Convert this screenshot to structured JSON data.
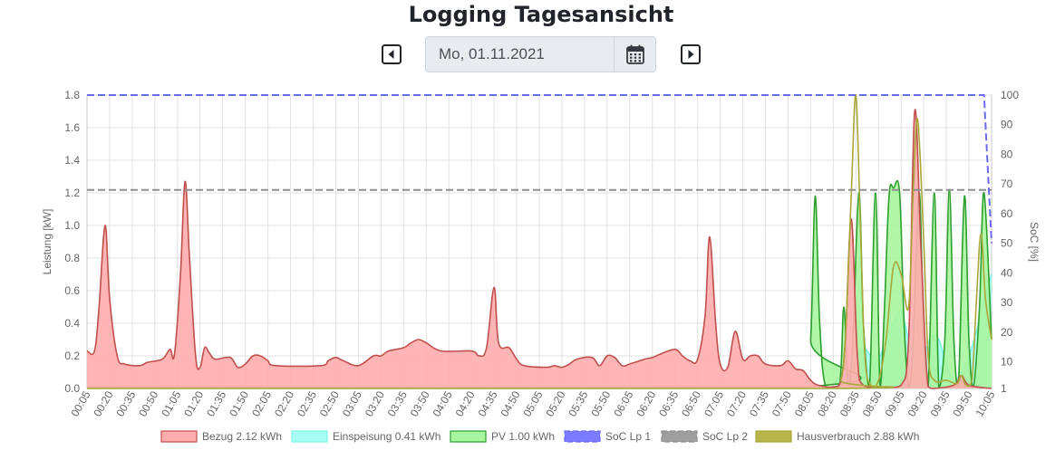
{
  "page": {
    "title": "Logging Tagesansicht"
  },
  "date_picker": {
    "value": "Mo, 01.11.2021"
  },
  "icons": {
    "prev": "caret-left-square-icon",
    "next": "caret-right-square-icon",
    "calendar": "calendar-icon"
  },
  "chart_data": {
    "type": "area",
    "ylabel": "Leistung [kW]",
    "y2label": "SoC [%]",
    "ylim": [
      0,
      1.8
    ],
    "y2lim": [
      1,
      100
    ],
    "yticks": [
      "0.0",
      "0.2",
      "0.4",
      "0.6",
      "0.8",
      "1.0",
      "1.2",
      "1.4",
      "1.6",
      "1.8"
    ],
    "y2ticks": [
      "1",
      "10",
      "20",
      "30",
      "40",
      "50",
      "60",
      "70",
      "80",
      "90",
      "100"
    ],
    "xticks": [
      "00:05",
      "00:20",
      "00:35",
      "00:50",
      "01:05",
      "01:20",
      "01:35",
      "01:50",
      "02:05",
      "02:20",
      "02:35",
      "02:50",
      "03:05",
      "03:20",
      "03:35",
      "03:50",
      "04:05",
      "04:20",
      "04:35",
      "04:50",
      "05:05",
      "05:20",
      "05:35",
      "05:50",
      "06:05",
      "06:20",
      "06:35",
      "06:50",
      "07:05",
      "07:20",
      "07:35",
      "07:50",
      "08:05",
      "08:20",
      "08:35",
      "08:50",
      "09:05",
      "09:20",
      "09:35",
      "09:50",
      "10:05"
    ],
    "x_start": "00:05",
    "x_end": "10:05",
    "grid": true,
    "legend_position": "bottom",
    "series": [
      {
        "name": "Bezug 2.12 kWh",
        "color": "#c0504d",
        "fill": "#ffadad",
        "axis": "left",
        "points": [
          [
            "00:05",
            0.23
          ],
          [
            "00:10",
            0.23
          ],
          [
            "00:13",
            0.5
          ],
          [
            "00:17",
            1.0
          ],
          [
            "00:20",
            0.55
          ],
          [
            "00:25",
            0.2
          ],
          [
            "00:30",
            0.15
          ],
          [
            "00:40",
            0.14
          ],
          [
            "00:45",
            0.16
          ],
          [
            "00:55",
            0.18
          ],
          [
            "01:00",
            0.24
          ],
          [
            "01:03",
            0.21
          ],
          [
            "01:07",
            0.7
          ],
          [
            "01:10",
            1.27
          ],
          [
            "01:13",
            0.8
          ],
          [
            "01:17",
            0.2
          ],
          [
            "01:20",
            0.13
          ],
          [
            "01:23",
            0.25
          ],
          [
            "01:26",
            0.22
          ],
          [
            "01:30",
            0.18
          ],
          [
            "01:40",
            0.19
          ],
          [
            "01:45",
            0.13
          ],
          [
            "01:50",
            0.15
          ],
          [
            "01:55",
            0.2
          ],
          [
            "02:00",
            0.2
          ],
          [
            "02:05",
            0.17
          ],
          [
            "02:10",
            0.14
          ],
          [
            "02:40",
            0.14
          ],
          [
            "02:45",
            0.17
          ],
          [
            "02:50",
            0.19
          ],
          [
            "02:55",
            0.17
          ],
          [
            "03:05",
            0.14
          ],
          [
            "03:15",
            0.2
          ],
          [
            "03:20",
            0.2
          ],
          [
            "03:25",
            0.23
          ],
          [
            "03:35",
            0.25
          ],
          [
            "03:40",
            0.28
          ],
          [
            "03:45",
            0.3
          ],
          [
            "03:50",
            0.28
          ],
          [
            "04:00",
            0.23
          ],
          [
            "04:20",
            0.23
          ],
          [
            "04:25",
            0.2
          ],
          [
            "04:30",
            0.25
          ],
          [
            "04:35",
            0.62
          ],
          [
            "04:38",
            0.28
          ],
          [
            "04:45",
            0.25
          ],
          [
            "04:50",
            0.18
          ],
          [
            "04:55",
            0.14
          ],
          [
            "05:10",
            0.13
          ],
          [
            "05:15",
            0.14
          ],
          [
            "05:20",
            0.13
          ],
          [
            "05:25",
            0.15
          ],
          [
            "05:30",
            0.18
          ],
          [
            "05:40",
            0.19
          ],
          [
            "05:45",
            0.14
          ],
          [
            "05:50",
            0.2
          ],
          [
            "05:55",
            0.19
          ],
          [
            "06:00",
            0.14
          ],
          [
            "06:05",
            0.15
          ],
          [
            "06:15",
            0.18
          ],
          [
            "06:20",
            0.19
          ],
          [
            "06:25",
            0.21
          ],
          [
            "06:35",
            0.24
          ],
          [
            "06:40",
            0.2
          ],
          [
            "06:45",
            0.17
          ],
          [
            "06:50",
            0.18
          ],
          [
            "06:55",
            0.45
          ],
          [
            "06:58",
            0.93
          ],
          [
            "07:02",
            0.4
          ],
          [
            "07:05",
            0.15
          ],
          [
            "07:10",
            0.13
          ],
          [
            "07:15",
            0.35
          ],
          [
            "07:20",
            0.18
          ],
          [
            "07:25",
            0.2
          ],
          [
            "07:30",
            0.2
          ],
          [
            "07:35",
            0.15
          ],
          [
            "07:45",
            0.14
          ],
          [
            "07:50",
            0.17
          ],
          [
            "07:55",
            0.12
          ],
          [
            "08:00",
            0.11
          ],
          [
            "08:05",
            0.05
          ],
          [
            "08:10",
            0.02
          ],
          [
            "08:20",
            0.01
          ],
          [
            "08:25",
            0.05
          ],
          [
            "08:28",
            0.3
          ],
          [
            "08:32",
            1.04
          ],
          [
            "08:36",
            0.2
          ],
          [
            "08:40",
            0.02
          ],
          [
            "08:55",
            0.01
          ],
          [
            "09:05",
            0.02
          ],
          [
            "09:10",
            0.3
          ],
          [
            "09:14",
            1.7
          ],
          [
            "09:18",
            0.9
          ],
          [
            "09:22",
            0.1
          ],
          [
            "09:25",
            0.0
          ],
          [
            "09:40",
            0.02
          ],
          [
            "09:45",
            0.08
          ],
          [
            "09:50",
            0.02
          ],
          [
            "10:05",
            0.0
          ]
        ]
      },
      {
        "name": "Einspeisung 0.41 kWh",
        "color": "#7ff2e6",
        "fill": "#a6fff0",
        "axis": "left",
        "points": [
          [
            "00:05",
            0.0
          ],
          [
            "08:15",
            0.0
          ],
          [
            "08:20",
            0.03
          ],
          [
            "08:25",
            0.07
          ],
          [
            "08:30",
            0.1
          ],
          [
            "08:35",
            0.18
          ],
          [
            "08:40",
            0.25
          ],
          [
            "08:45",
            0.2
          ],
          [
            "08:50",
            0.18
          ],
          [
            "08:55",
            0.3
          ],
          [
            "09:00",
            0.4
          ],
          [
            "09:05",
            0.48
          ],
          [
            "09:10",
            0.3
          ],
          [
            "09:15",
            0.18
          ],
          [
            "09:20",
            0.2
          ],
          [
            "09:25",
            0.32
          ],
          [
            "09:30",
            0.3
          ],
          [
            "09:35",
            0.15
          ],
          [
            "09:40",
            0.05
          ],
          [
            "09:45",
            0.1
          ],
          [
            "09:50",
            0.2
          ],
          [
            "09:55",
            0.35
          ],
          [
            "10:00",
            0.55
          ],
          [
            "10:05",
            0.7
          ]
        ]
      },
      {
        "name": "PV 1.00 kWh",
        "color": "#2e9f2e",
        "fill": "#a8f5a0",
        "axis": "left",
        "points": [
          [
            "00:05",
            0.01
          ],
          [
            "08:00",
            0.01
          ],
          [
            "08:05",
            0.3
          ],
          [
            "08:08",
            1.18
          ],
          [
            "08:11",
            0.4
          ],
          [
            "08:15",
            0.01
          ],
          [
            "08:24",
            0.01
          ],
          [
            "08:27",
            0.5
          ],
          [
            "08:30",
            0.02
          ],
          [
            "08:33",
            0.3
          ],
          [
            "08:37",
            1.2
          ],
          [
            "08:40",
            0.4
          ],
          [
            "08:44",
            0.01
          ],
          [
            "08:48",
            1.2
          ],
          [
            "08:51",
            0.01
          ],
          [
            "08:54",
            0.5
          ],
          [
            "08:57",
            1.18
          ],
          [
            "09:00",
            1.23
          ],
          [
            "09:04",
            1.2
          ],
          [
            "09:07",
            0.4
          ],
          [
            "09:10",
            0.01
          ],
          [
            "09:13",
            0.3
          ],
          [
            "09:17",
            1.2
          ],
          [
            "09:20",
            0.3
          ],
          [
            "09:23",
            0.01
          ],
          [
            "09:27",
            1.2
          ],
          [
            "09:30",
            0.01
          ],
          [
            "09:34",
            0.3
          ],
          [
            "09:37",
            1.22
          ],
          [
            "09:40",
            0.3
          ],
          [
            "09:43",
            0.01
          ],
          [
            "09:47",
            1.18
          ],
          [
            "09:50",
            0.3
          ],
          [
            "09:53",
            0.01
          ],
          [
            "09:57",
            0.5
          ],
          [
            "10:00",
            1.2
          ],
          [
            "10:05",
            0.3
          ]
        ]
      },
      {
        "name": "SoC Lp 1",
        "color": "#6b6bf0",
        "fill": "#7b7bff",
        "axis": "right",
        "dashed": true,
        "points": [
          [
            "00:05",
            100
          ],
          [
            "10:00",
            100
          ],
          [
            "10:05",
            50
          ]
        ]
      },
      {
        "name": "SoC Lp 2",
        "color": "#8f8f8f",
        "fill": "#9e9e9e",
        "axis": "right",
        "dashed": true,
        "points": [
          [
            "00:05",
            68
          ],
          [
            "10:05",
            68
          ]
        ]
      },
      {
        "name": "Hausverbrauch 2.88 kWh",
        "color": "#a8a83a",
        "fill": "#b5b54a",
        "axis": "left",
        "no_fill": true,
        "points": [
          [
            "00:05",
            0.0
          ],
          [
            "08:20",
            0.0
          ],
          [
            "08:25",
            0.05
          ],
          [
            "08:28",
            0.3
          ],
          [
            "08:32",
            1.2
          ],
          [
            "08:35",
            1.8
          ],
          [
            "08:38",
            1.0
          ],
          [
            "08:41",
            0.2
          ],
          [
            "08:45",
            0.02
          ],
          [
            "08:50",
            0.05
          ],
          [
            "08:55",
            0.3
          ],
          [
            "09:00",
            0.75
          ],
          [
            "09:05",
            0.7
          ],
          [
            "09:10",
            0.5
          ],
          [
            "09:13",
            1.2
          ],
          [
            "09:16",
            1.65
          ],
          [
            "09:20",
            0.9
          ],
          [
            "09:23",
            0.2
          ],
          [
            "09:27",
            0.05
          ],
          [
            "09:35",
            0.05
          ],
          [
            "09:42",
            0.03
          ],
          [
            "09:45",
            0.08
          ],
          [
            "09:48",
            0.02
          ],
          [
            "09:52",
            0.05
          ],
          [
            "09:55",
            0.55
          ],
          [
            "09:58",
            0.95
          ],
          [
            "10:01",
            0.55
          ],
          [
            "10:05",
            0.3
          ]
        ]
      }
    ]
  }
}
